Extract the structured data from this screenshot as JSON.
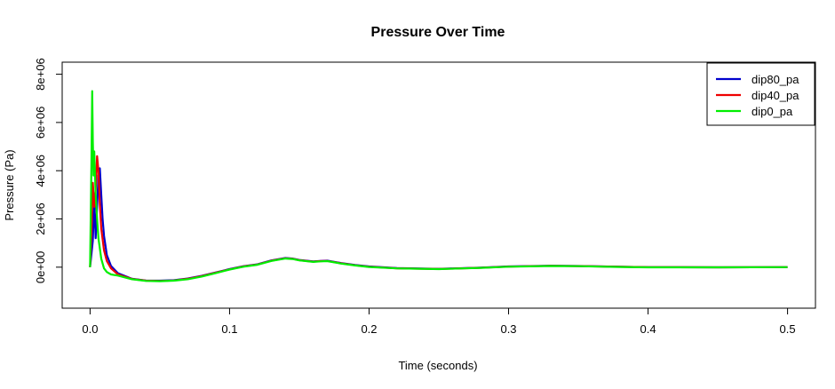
{
  "chart_data": {
    "type": "line",
    "title": "Pressure Over Time",
    "xlabel": "Time (seconds)",
    "ylabel": "Pressure (Pa)",
    "xlim": [
      -0.02,
      0.52
    ],
    "ylim": [
      -1700000,
      8500000
    ],
    "x_ticks": [
      0,
      0.1,
      0.2,
      0.3,
      0.4,
      0.5
    ],
    "x_tick_labels": [
      "0.0",
      "0.1",
      "0.2",
      "0.3",
      "0.4",
      "0.5"
    ],
    "y_ticks": [
      0,
      2000000,
      4000000,
      6000000,
      8000000
    ],
    "y_tick_labels": [
      "0e+00",
      "2e+06",
      "4e+06",
      "6e+06",
      "8e+06"
    ],
    "grid": false,
    "legend_position": "top-right",
    "series": [
      {
        "name": "dip80_pa",
        "color": "#0000CD",
        "x": [
          0,
          0.002,
          0.003,
          0.004,
          0.005,
          0.006,
          0.007,
          0.008,
          0.009,
          0.01,
          0.012,
          0.015,
          0.02,
          0.03,
          0.04,
          0.05,
          0.06,
          0.07,
          0.08,
          0.09,
          0.1,
          0.11,
          0.12,
          0.13,
          0.14,
          0.145,
          0.15,
          0.16,
          0.165,
          0.17,
          0.18,
          0.19,
          0.2,
          0.22,
          0.25,
          0.28,
          0.3,
          0.33,
          0.35,
          0.38,
          0.4,
          0.45,
          0.5
        ],
        "y": [
          0,
          1100000,
          2800000,
          1200000,
          2500000,
          3800000,
          4100000,
          3000000,
          2000000,
          1300000,
          500000,
          50000,
          -250000,
          -480000,
          -550000,
          -560000,
          -540000,
          -470000,
          -360000,
          -220000,
          -80000,
          40000,
          120000,
          280000,
          380000,
          360000,
          300000,
          240000,
          260000,
          270000,
          170000,
          90000,
          30000,
          -40000,
          -70000,
          -20000,
          30000,
          60000,
          50000,
          20000,
          0,
          -5000,
          0
        ]
      },
      {
        "name": "dip40_pa",
        "color": "#EE0000",
        "x": [
          0,
          0.001,
          0.002,
          0.003,
          0.004,
          0.005,
          0.006,
          0.007,
          0.008,
          0.01,
          0.012,
          0.015,
          0.02,
          0.03,
          0.04,
          0.05,
          0.06,
          0.07,
          0.08,
          0.09,
          0.1,
          0.11,
          0.12,
          0.13,
          0.14,
          0.145,
          0.15,
          0.16,
          0.165,
          0.17,
          0.18,
          0.19,
          0.2,
          0.22,
          0.25,
          0.28,
          0.3,
          0.33,
          0.35,
          0.38,
          0.4,
          0.45,
          0.5
        ],
        "y": [
          0,
          1600000,
          3500000,
          2500000,
          3200000,
          4600000,
          4000000,
          2600000,
          1600000,
          700000,
          250000,
          -50000,
          -300000,
          -490000,
          -560000,
          -570000,
          -550000,
          -480000,
          -370000,
          -230000,
          -90000,
          30000,
          110000,
          270000,
          370000,
          350000,
          290000,
          230000,
          250000,
          260000,
          160000,
          80000,
          20000,
          -45000,
          -75000,
          -25000,
          25000,
          55000,
          45000,
          15000,
          0,
          -5000,
          0
        ]
      },
      {
        "name": "dip0_pa",
        "color": "#00EE00",
        "x": [
          0,
          0.001,
          0.0015,
          0.002,
          0.0025,
          0.003,
          0.004,
          0.005,
          0.006,
          0.008,
          0.01,
          0.012,
          0.015,
          0.02,
          0.03,
          0.04,
          0.05,
          0.06,
          0.07,
          0.08,
          0.09,
          0.1,
          0.11,
          0.12,
          0.13,
          0.14,
          0.145,
          0.15,
          0.16,
          0.165,
          0.17,
          0.18,
          0.19,
          0.2,
          0.22,
          0.25,
          0.28,
          0.3,
          0.33,
          0.35,
          0.38,
          0.4,
          0.45,
          0.5
        ],
        "y": [
          0,
          4500000,
          7300000,
          5200000,
          3800000,
          4800000,
          3000000,
          2000000,
          1200000,
          350000,
          -50000,
          -200000,
          -300000,
          -350000,
          -500000,
          -570000,
          -580000,
          -560000,
          -500000,
          -390000,
          -250000,
          -100000,
          20000,
          100000,
          260000,
          360000,
          340000,
          280000,
          220000,
          240000,
          250000,
          150000,
          70000,
          10000,
          -50000,
          -80000,
          -30000,
          20000,
          50000,
          40000,
          10000,
          -5000,
          -5000,
          0
        ]
      }
    ]
  }
}
